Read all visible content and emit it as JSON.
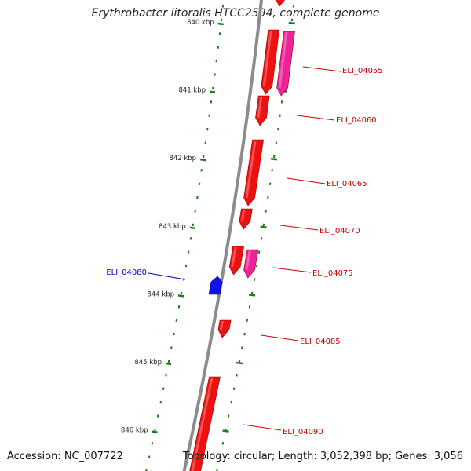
{
  "title": "Erythrobacter litoralis HTCC2594, complete genome",
  "accession": "Accession: NC_007722",
  "summary": "Topology: circular; Length: 3,052,398 bp; Genes: 3,056",
  "colors": {
    "backbone": "#8c8c8c",
    "ticks": "#1e7a1e",
    "cds_forward": "#ee1111",
    "cds_forward_alt": "#ee2299",
    "cds_reverse": "#1111ee",
    "label_forward": "#cc0000",
    "label_reverse": "#0000cc"
  },
  "scale": {
    "labels": [
      "840 kbp",
      "841 kbp",
      "842 kbp",
      "843 kbp",
      "844 kbp",
      "845 kbp",
      "846 kbp"
    ]
  },
  "genes": [
    {
      "locus": "ELI_04055",
      "strand": "forward"
    },
    {
      "locus": "ELI_04060",
      "strand": "forward"
    },
    {
      "locus": "ELI_04065",
      "strand": "forward"
    },
    {
      "locus": "ELI_04070",
      "strand": "forward"
    },
    {
      "locus": "ELI_04075",
      "strand": "forward"
    },
    {
      "locus": "ELI_04080",
      "strand": "reverse"
    },
    {
      "locus": "ELI_04085",
      "strand": "forward"
    },
    {
      "locus": "ELI_04090",
      "strand": "forward"
    }
  ]
}
